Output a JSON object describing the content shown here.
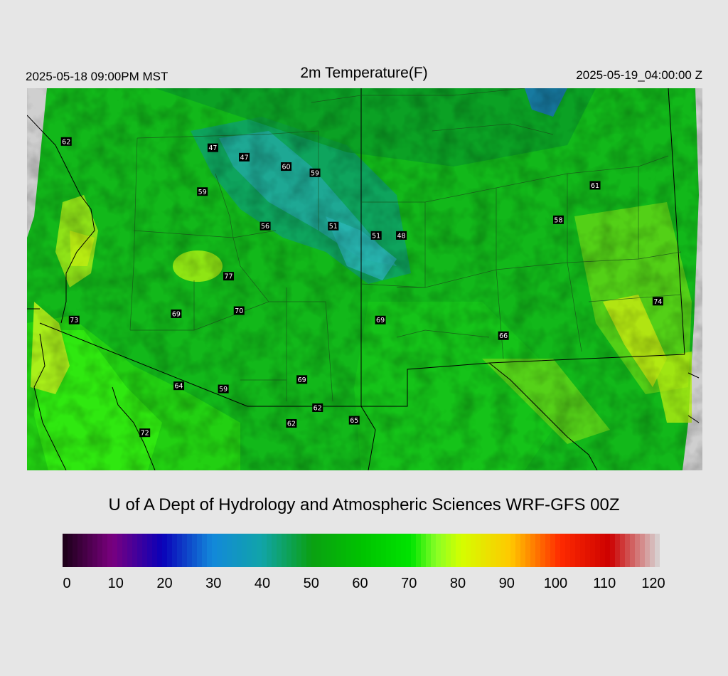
{
  "header": {
    "local_time": "2025-05-18 09:00PM MST",
    "title": "2m Temperature(F)",
    "utc_time": "2025-05-19_04:00:00 Z"
  },
  "credit": "U of A Dept of Hydrology and Atmospheric Sciences WRF-GFS 00Z",
  "colorbar": {
    "ticks": [
      "0",
      "10",
      "20",
      "30",
      "40",
      "50",
      "60",
      "70",
      "80",
      "90",
      "100",
      "110",
      "120"
    ],
    "range": [
      0,
      120
    ],
    "colors": {
      "0": "#1a0016",
      "10": "#7a007f",
      "20": "#0a00b8",
      "30": "#1288da",
      "40": "#11a4a8",
      "50": "#0aa012",
      "60": "#00c200",
      "70": "#00e400",
      "75": "#86ff26",
      "80": "#d4ff00",
      "90": "#ffc800",
      "100": "#ff2a00",
      "110": "#cc0000",
      "120": "#d8d8d8"
    }
  },
  "stations": [
    {
      "label": "62",
      "lon": -114.7,
      "lat": 36.2
    },
    {
      "label": "47",
      "lon": -111.9,
      "lat": 36.1
    },
    {
      "label": "47",
      "lon": -111.3,
      "lat": 35.95
    },
    {
      "label": "60",
      "lon": -110.5,
      "lat": 35.8
    },
    {
      "label": "59",
      "lon": -109.95,
      "lat": 35.7
    },
    {
      "label": "59",
      "lon": -112.1,
      "lat": 35.4
    },
    {
      "label": "56",
      "lon": -110.9,
      "lat": 34.85
    },
    {
      "label": "51",
      "lon": -109.6,
      "lat": 34.85
    },
    {
      "label": "51",
      "lon": -108.78,
      "lat": 34.7
    },
    {
      "label": "48",
      "lon": -108.3,
      "lat": 34.7
    },
    {
      "label": "61",
      "lon": -104.6,
      "lat": 35.5
    },
    {
      "label": "58",
      "lon": -105.3,
      "lat": 34.95
    },
    {
      "label": "77",
      "lon": -111.6,
      "lat": 34.05
    },
    {
      "label": "70",
      "lon": -111.4,
      "lat": 33.5
    },
    {
      "label": "69",
      "lon": -112.6,
      "lat": 33.45
    },
    {
      "label": "69",
      "lon": -108.7,
      "lat": 33.35
    },
    {
      "label": "73",
      "lon": -114.55,
      "lat": 33.35
    },
    {
      "label": "74",
      "lon": -103.4,
      "lat": 33.65
    },
    {
      "label": "66",
      "lon": -106.35,
      "lat": 33.1
    },
    {
      "label": "69",
      "lon": -110.2,
      "lat": 32.4
    },
    {
      "label": "64",
      "lon": -112.55,
      "lat": 32.3
    },
    {
      "label": "59",
      "lon": -111.7,
      "lat": 32.25
    },
    {
      "label": "62",
      "lon": -109.9,
      "lat": 31.95
    },
    {
      "label": "62",
      "lon": -110.4,
      "lat": 31.7
    },
    {
      "label": "65",
      "lon": -109.2,
      "lat": 31.75
    },
    {
      "label": "72",
      "lon": -113.2,
      "lat": 31.55
    }
  ]
}
